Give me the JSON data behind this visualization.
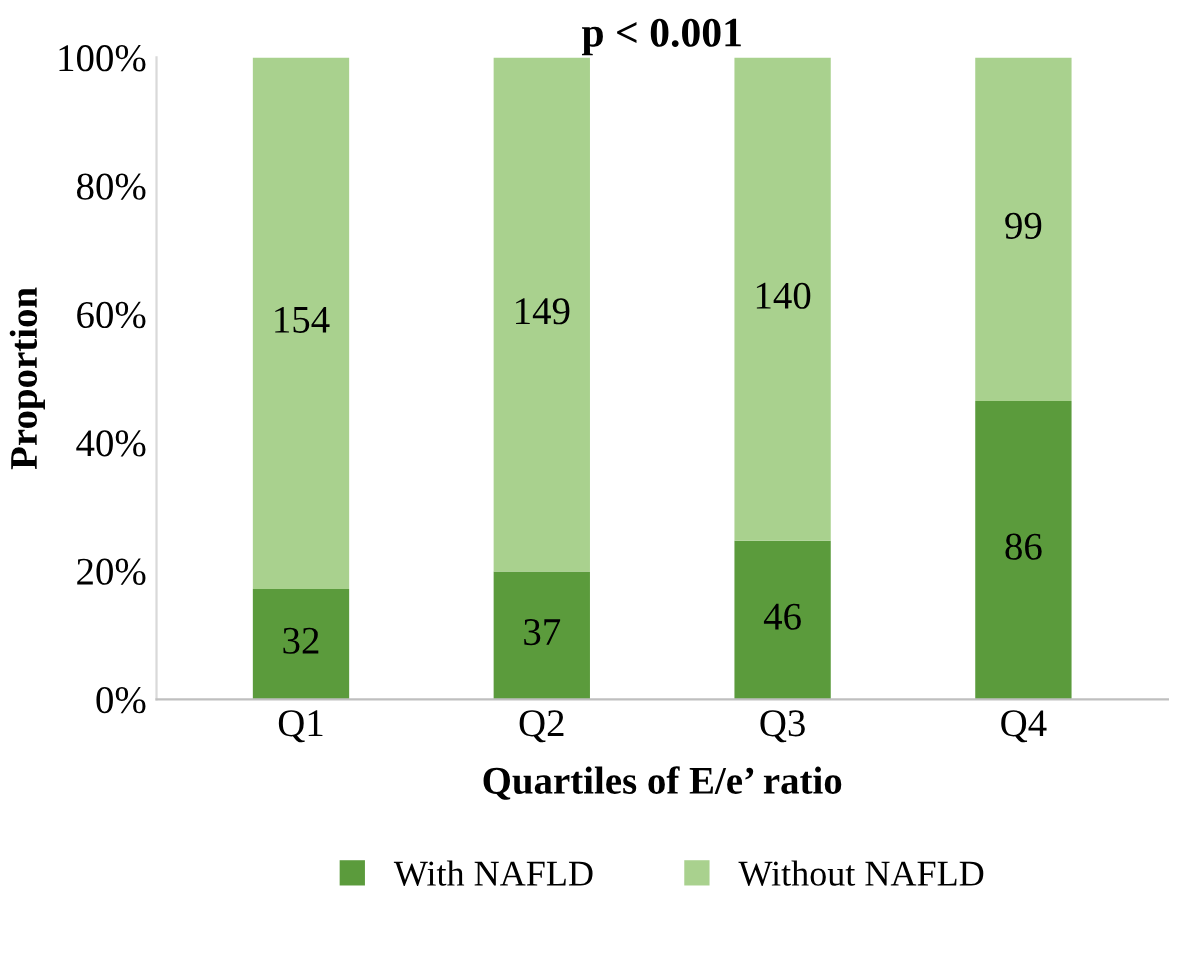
{
  "chart_data": {
    "type": "bar",
    "title": "p < 0.001",
    "xlabel": "Quartiles of E/e’ ratio",
    "ylabel": "Proportion",
    "categories": [
      "Q1",
      "Q2",
      "Q3",
      "Q4"
    ],
    "stacked": true,
    "series": [
      {
        "name": "With NAFLD",
        "color": "#5b9b3c",
        "values": [
          17.2,
          19.9,
          24.7,
          46.5
        ]
      },
      {
        "name": "Without NAFLD",
        "color": "#a9d18e",
        "values": [
          82.8,
          80.1,
          75.3,
          53.5
        ]
      }
    ],
    "annotations": [
      "32",
      "37",
      "46",
      "86",
      "154",
      "149",
      "140",
      "99"
    ],
    "ylim": [
      0,
      100
    ],
    "yticks": [
      {
        "value": 0,
        "label": "0%"
      },
      {
        "value": 20,
        "label": "20%"
      },
      {
        "value": 40,
        "label": "40%"
      },
      {
        "value": 60,
        "label": "60%"
      },
      {
        "value": 80,
        "label": "80%"
      },
      {
        "value": 100,
        "label": "100%"
      }
    ],
    "grid": false,
    "legend": "bottom"
  }
}
